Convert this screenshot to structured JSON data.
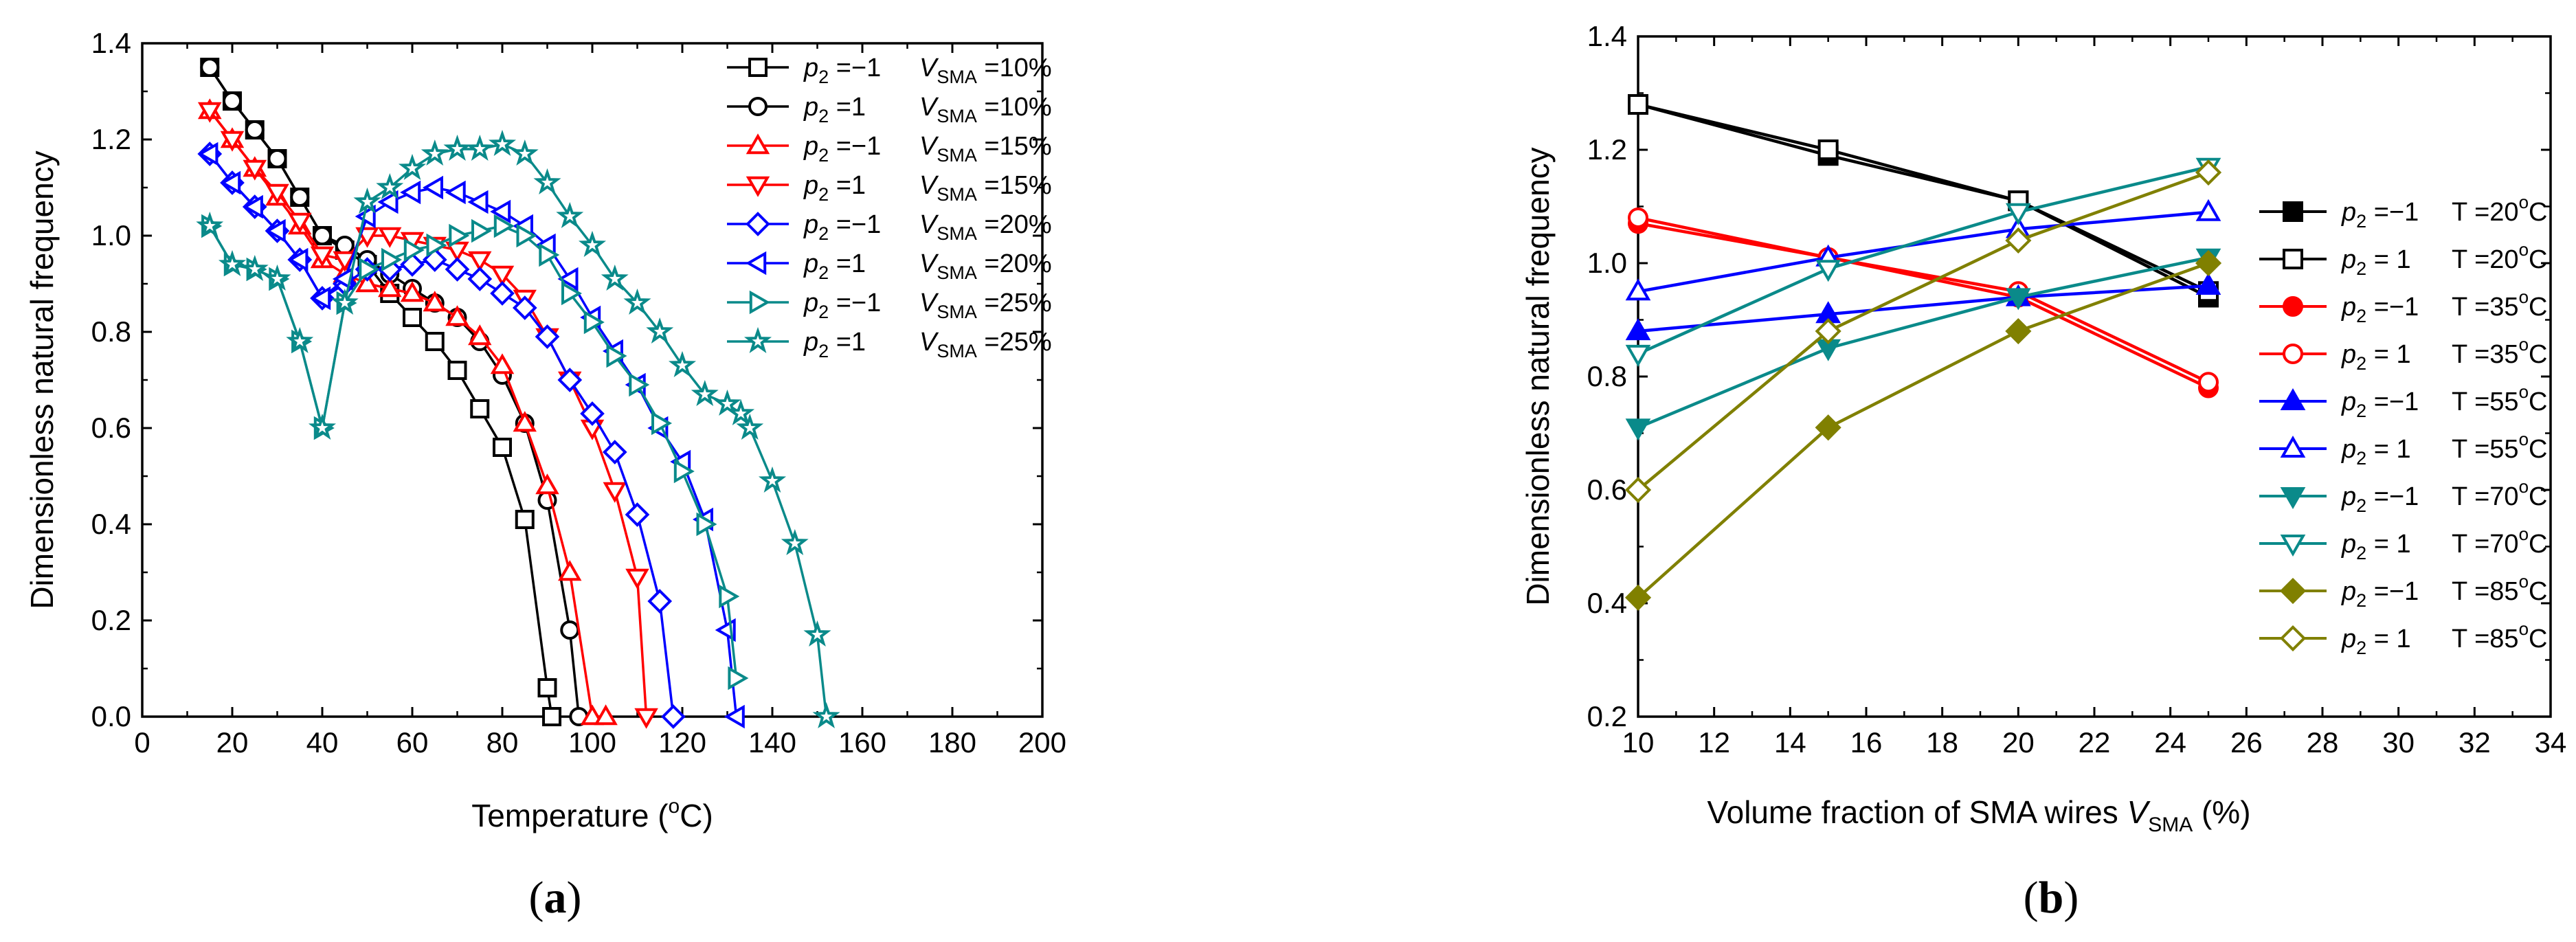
{
  "chart_data": [
    {
      "type": "line",
      "panel_label": {
        "open": "(",
        "letter": "a",
        "close": ")"
      },
      "xlabel": {
        "text": "Temperature (",
        "sup": "o",
        "unit": "C)"
      },
      "ylabel": "Dimensionless natural frequency",
      "xlim": [
        0,
        200
      ],
      "ylim": [
        0,
        1.4
      ],
      "xticks": [
        0,
        20,
        40,
        60,
        80,
        100,
        120,
        140,
        160,
        180,
        200
      ],
      "yticks": [
        0.0,
        0.2,
        0.4,
        0.6,
        0.8,
        1.0,
        1.2,
        1.4
      ],
      "ytick_labels": [
        "0.0",
        "0.2",
        "0.4",
        "0.6",
        "0.8",
        "1.0",
        "1.2",
        "1.4"
      ],
      "legend_position": "top-right",
      "series": [
        {
          "name": "p2 =-1 VSMA =10%",
          "p_value": "=−1",
          "v_label": "=10%",
          "color": "#000000",
          "marker": "square",
          "x": [
            15,
            20,
            25,
            30,
            35,
            40,
            45,
            50,
            55,
            60,
            65,
            70,
            75,
            80,
            85,
            90,
            91
          ],
          "y": [
            1.35,
            1.28,
            1.22,
            1.16,
            1.08,
            1.0,
            0.97,
            0.94,
            0.88,
            0.83,
            0.78,
            0.72,
            0.64,
            0.56,
            0.41,
            0.06,
            0.0
          ]
        },
        {
          "name": "p2 =1 VSMA =10%",
          "p_value": "=1",
          "v_label": "=10%",
          "color": "#000000",
          "marker": "circle",
          "x": [
            15,
            20,
            25,
            30,
            35,
            40,
            45,
            50,
            55,
            60,
            65,
            70,
            75,
            80,
            85,
            90,
            95,
            97
          ],
          "y": [
            1.35,
            1.28,
            1.22,
            1.16,
            1.08,
            1.0,
            0.98,
            0.95,
            0.92,
            0.89,
            0.86,
            0.83,
            0.78,
            0.71,
            0.61,
            0.45,
            0.18,
            0.0
          ]
        },
        {
          "name": "p2 =-1 VSMA =15%",
          "p_value": "=−1",
          "v_label": "=15%",
          "color": "#ff0000",
          "marker": "triangle-up",
          "x": [
            15,
            20,
            25,
            30,
            35,
            40,
            45,
            50,
            55,
            60,
            65,
            70,
            75,
            80,
            85,
            90,
            95,
            100,
            103
          ],
          "y": [
            1.26,
            1.2,
            1.14,
            1.08,
            1.02,
            0.95,
            0.92,
            0.9,
            0.89,
            0.88,
            0.86,
            0.83,
            0.79,
            0.73,
            0.61,
            0.48,
            0.3,
            0.0,
            0.0
          ]
        },
        {
          "name": "p2 =1 VSMA =15%",
          "p_value": "=1",
          "v_label": "=15%",
          "color": "#ff0000",
          "marker": "triangle-down",
          "x": [
            15,
            20,
            25,
            30,
            35,
            40,
            45,
            50,
            55,
            60,
            65,
            70,
            75,
            80,
            85,
            90,
            95,
            100,
            105,
            110,
            112
          ],
          "y": [
            1.26,
            1.2,
            1.14,
            1.09,
            1.03,
            0.96,
            0.95,
            1.0,
            1.0,
            0.99,
            0.98,
            0.97,
            0.95,
            0.92,
            0.87,
            0.79,
            0.7,
            0.6,
            0.47,
            0.29,
            0.0
          ]
        },
        {
          "name": "p2 =-1 VSMA =20%",
          "p_value": "=−1",
          "v_label": "=20%",
          "color": "#0000ff",
          "marker": "diamond",
          "x": [
            15,
            20,
            25,
            30,
            35,
            40,
            45,
            50,
            55,
            60,
            65,
            70,
            75,
            80,
            85,
            90,
            95,
            100,
            105,
            110,
            115,
            118
          ],
          "y": [
            1.17,
            1.11,
            1.06,
            1.01,
            0.95,
            0.87,
            0.9,
            0.93,
            0.93,
            0.94,
            0.95,
            0.93,
            0.91,
            0.88,
            0.85,
            0.79,
            0.7,
            0.63,
            0.55,
            0.42,
            0.24,
            0.0
          ]
        },
        {
          "name": "p2 =1 VSMA =20%",
          "p_value": "=1",
          "v_label": "=20%",
          "color": "#0000ff",
          "marker": "triangle-left",
          "x": [
            15,
            20,
            25,
            30,
            35,
            40,
            45,
            50,
            55,
            60,
            65,
            70,
            75,
            80,
            85,
            90,
            95,
            100,
            105,
            110,
            115,
            120,
            125,
            130,
            132
          ],
          "y": [
            1.17,
            1.11,
            1.06,
            1.01,
            0.95,
            0.87,
            0.91,
            1.04,
            1.07,
            1.09,
            1.1,
            1.09,
            1.07,
            1.05,
            1.02,
            0.98,
            0.91,
            0.83,
            0.76,
            0.69,
            0.6,
            0.53,
            0.41,
            0.18,
            0.0
          ]
        },
        {
          "name": "p2 =-1 VSMA =25%",
          "p_value": "=−1",
          "v_label": "=25%",
          "color": "#0a8a8a",
          "marker": "triangle-right",
          "x": [
            15,
            20,
            25,
            30,
            35,
            40,
            45,
            50,
            55,
            60,
            65,
            70,
            75,
            80,
            85,
            90,
            95,
            100,
            105,
            110,
            115,
            120,
            125,
            130,
            132
          ],
          "y": [
            1.02,
            0.94,
            0.93,
            0.91,
            0.78,
            0.6,
            0.86,
            0.93,
            0.95,
            0.97,
            0.98,
            1.0,
            1.01,
            1.02,
            1.0,
            0.96,
            0.88,
            0.82,
            0.75,
            0.69,
            0.61,
            0.51,
            0.4,
            0.25,
            0.08
          ]
        },
        {
          "name": "p2 =1 VSMA =25%",
          "p_value": "=1",
          "v_label": "=25%",
          "color": "#0a8a8a",
          "marker": "star",
          "x": [
            15,
            20,
            25,
            30,
            35,
            40,
            45,
            50,
            55,
            60,
            65,
            70,
            75,
            80,
            85,
            90,
            95,
            100,
            105,
            110,
            115,
            120,
            125,
            130,
            133,
            135,
            140,
            145,
            150,
            152
          ],
          "y": [
            1.02,
            0.94,
            0.93,
            0.91,
            0.78,
            0.6,
            0.86,
            1.07,
            1.1,
            1.14,
            1.17,
            1.18,
            1.18,
            1.19,
            1.17,
            1.11,
            1.04,
            0.98,
            0.91,
            0.86,
            0.8,
            0.73,
            0.67,
            0.65,
            0.63,
            0.6,
            0.49,
            0.36,
            0.17,
            0.0
          ]
        }
      ]
    },
    {
      "type": "line",
      "panel_label": {
        "open": "(",
        "letter": "b",
        "close": ")"
      },
      "xlabel": {
        "text": "Volume fraction of SMA wires ",
        "var": "V",
        "sub": "SMA",
        "unit": "(%)"
      },
      "ylabel": "Dimensionless natural frequency",
      "xlim": [
        10,
        34
      ],
      "ylim": [
        0.2,
        1.4
      ],
      "xticks": [
        10,
        12,
        14,
        16,
        18,
        20,
        22,
        24,
        26,
        28,
        30,
        32,
        34
      ],
      "yticks": [
        0.2,
        0.4,
        0.6,
        0.8,
        1.0,
        1.2,
        1.4
      ],
      "ytick_labels": [
        "0.2",
        "0.4",
        "0.6",
        "0.8",
        "1.0",
        "1.2",
        "1.4"
      ],
      "legend_position": "right",
      "series": [
        {
          "name": "p2 =-1 T=20C",
          "p_value": "=−1",
          "t_label": "=20",
          "color": "#000000",
          "marker": "square",
          "filled": true,
          "x": [
            10,
            15,
            20,
            25
          ],
          "y": [
            1.28,
            1.19,
            1.11,
            0.94
          ]
        },
        {
          "name": "p2 =1 T=20C",
          "p_value": "= 1",
          "t_label": "=20",
          "color": "#000000",
          "marker": "square",
          "filled": false,
          "x": [
            10,
            15,
            20,
            25
          ],
          "y": [
            1.28,
            1.2,
            1.11,
            0.95
          ]
        },
        {
          "name": "p2 =-1 T=35C",
          "p_value": "=−1",
          "t_label": "=35",
          "color": "#ff0000",
          "marker": "circle",
          "filled": true,
          "x": [
            10,
            15,
            20,
            25
          ],
          "y": [
            1.07,
            1.01,
            0.94,
            0.78
          ]
        },
        {
          "name": "p2 =1 T=35C",
          "p_value": "= 1",
          "t_label": "=35",
          "color": "#ff0000",
          "marker": "circle",
          "filled": false,
          "x": [
            10,
            15,
            20,
            25
          ],
          "y": [
            1.08,
            1.01,
            0.95,
            0.79
          ]
        },
        {
          "name": "p2 =-1 T=55C",
          "p_value": "=−1",
          "t_label": "=55",
          "color": "#0000ff",
          "marker": "triangle-up",
          "filled": true,
          "x": [
            10,
            15,
            20,
            25
          ],
          "y": [
            0.88,
            0.91,
            0.94,
            0.96
          ]
        },
        {
          "name": "p2 =1 T=55C",
          "p_value": "= 1",
          "t_label": "=55",
          "color": "#0000ff",
          "marker": "triangle-up",
          "filled": false,
          "x": [
            10,
            15,
            20,
            25
          ],
          "y": [
            0.95,
            1.01,
            1.06,
            1.09
          ]
        },
        {
          "name": "p2 =-1 T=70C",
          "p_value": "=−1",
          "t_label": "=70",
          "color": "#0a8a8a",
          "marker": "triangle-down",
          "filled": true,
          "x": [
            10,
            15,
            20,
            25
          ],
          "y": [
            0.71,
            0.85,
            0.94,
            1.01
          ]
        },
        {
          "name": "p2 =1 T=70C",
          "p_value": "= 1",
          "t_label": "=70",
          "color": "#0a8a8a",
          "marker": "triangle-down",
          "filled": false,
          "x": [
            10,
            15,
            20,
            25
          ],
          "y": [
            0.84,
            0.99,
            1.09,
            1.17
          ]
        },
        {
          "name": "p2 =-1 T=85C",
          "p_value": "=−1",
          "t_label": "=85",
          "color": "#808000",
          "marker": "diamond",
          "filled": true,
          "x": [
            10,
            15,
            20,
            25
          ],
          "y": [
            0.41,
            0.71,
            0.88,
            1.0
          ]
        },
        {
          "name": "p2 =1 T=85C",
          "p_value": "= 1",
          "t_label": "=85",
          "color": "#808000",
          "marker": "diamond",
          "filled": false,
          "x": [
            10,
            15,
            20,
            25
          ],
          "y": [
            0.6,
            0.88,
            1.04,
            1.16
          ]
        }
      ]
    }
  ]
}
